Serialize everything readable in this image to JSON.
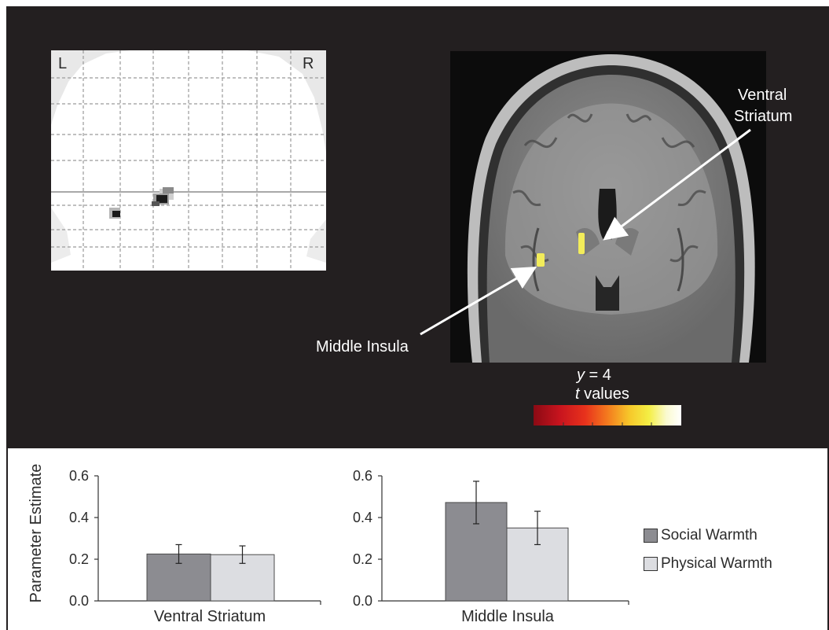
{
  "image": {
    "glass_brain": {
      "left_label": "L",
      "right_label": "R"
    },
    "mri": {
      "label_ventral_striatum_1": "Ventral",
      "label_ventral_striatum_2": "Striatum",
      "label_middle_insula": "Middle Insula",
      "slice_var": "y",
      "slice_rest": " = 4",
      "colorbar_var": "t",
      "colorbar_rest": " values"
    }
  },
  "legend": [
    {
      "label": "Social Warmth",
      "color": "#8c8c91"
    },
    {
      "label": "Physical Warmth",
      "color": "#dcdde1"
    }
  ],
  "colors": {
    "background_dark": "#231f20",
    "social": "#8c8c91",
    "physical": "#dcdde1",
    "highlight": "#f2ec5a"
  },
  "chart_data": [
    {
      "type": "bar",
      "xlabel": "Ventral Striatum",
      "ylabel": "Parameter Estimate",
      "ylim": [
        0,
        0.6
      ],
      "yticks": [
        "0.0",
        "0.2",
        "0.4",
        "0.6"
      ],
      "series": [
        {
          "name": "Social Warmth",
          "values": [
            0.225
          ],
          "error": [
            0.045
          ]
        },
        {
          "name": "Physical Warmth",
          "values": [
            0.222
          ],
          "error": [
            0.042
          ]
        }
      ]
    },
    {
      "type": "bar",
      "xlabel": "Middle Insula",
      "ylabel": "",
      "ylim": [
        0,
        0.6
      ],
      "yticks": [
        "0.0",
        "0.2",
        "0.4",
        "0.6"
      ],
      "series": [
        {
          "name": "Social Warmth",
          "values": [
            0.472
          ],
          "error": [
            0.102
          ]
        },
        {
          "name": "Physical Warmth",
          "values": [
            0.35
          ],
          "error": [
            0.08
          ]
        }
      ]
    }
  ]
}
